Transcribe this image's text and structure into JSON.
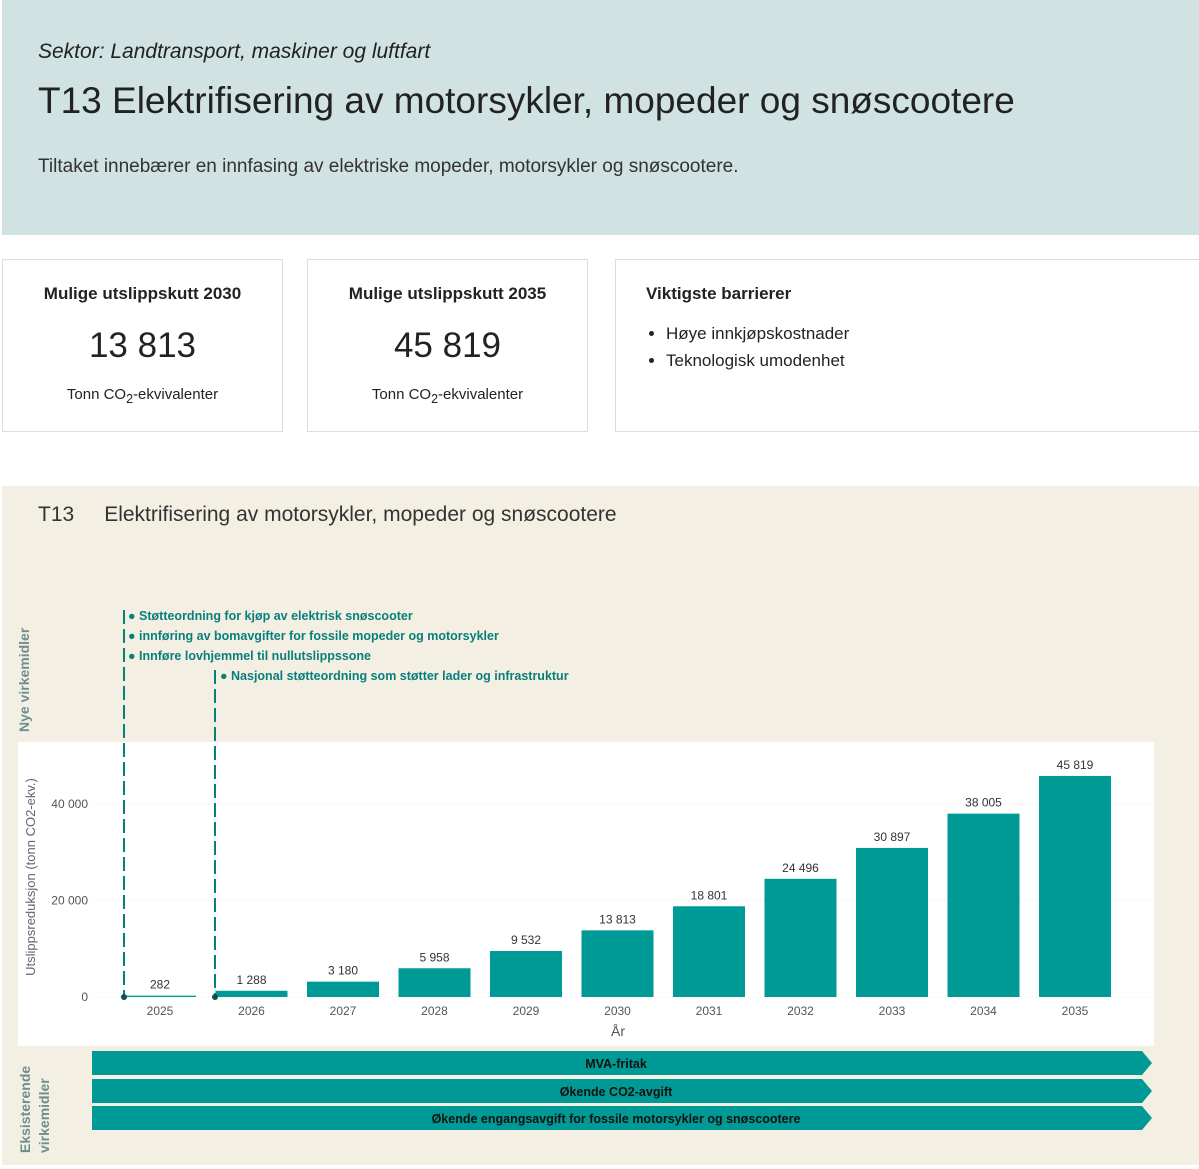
{
  "header": {
    "sector": "Sektor: Landtransport, maskiner og luftfart",
    "title": "T13 Elektrifisering av motorsykler, mopeder og snøscootere",
    "description": "Tiltaket innebærer en innfasing av elektriske mopeder, motorsykler og snøscootere."
  },
  "cards": [
    {
      "heading": "Mulige utslippskutt 2030",
      "value": "13 813",
      "unit_pre": "Tonn CO",
      "unit_sub": "2",
      "unit_post": "-ekvivalenter"
    },
    {
      "heading": "Mulige utslippskutt 2035",
      "value": "45 819",
      "unit_pre": "Tonn CO",
      "unit_sub": "2",
      "unit_post": "-ekvivalenter"
    }
  ],
  "barriers": {
    "heading": "Viktigste barrierer",
    "items": [
      "Høye innkjøpskostnader",
      "Teknologisk umodenhet"
    ]
  },
  "panel": {
    "code": "T13",
    "title": "Elektrifisering av motorsykler, mopeder og snøscootere",
    "new_label": "Nye virkemidler",
    "existing_label_1": "Eksisterende",
    "existing_label_2": "virkemidler"
  },
  "new_policies": [
    {
      "year": "2025",
      "text": "● Støtteordning for kjøp av elektrisk snøscooter"
    },
    {
      "year": "2025",
      "text": "● innføring av  bomavgifter for fossile mopeder og motorsykler"
    },
    {
      "year": "2025",
      "text": "● Innføre lovhjemmel til nullutslippssone"
    },
    {
      "year": "2026",
      "text": "● Nasjonal støtteordning som støtter lader og infrastruktur"
    }
  ],
  "existing_policies": [
    "MVA-fritak",
    "Økende CO2-avgift",
    "Økende engangsavgift for fossile motorsykler og snøscootere"
  ],
  "colors": {
    "bar": "#009a96",
    "policy_text": "#087f7b"
  },
  "chart_data": {
    "type": "bar",
    "categories": [
      "2025",
      "2026",
      "2027",
      "2028",
      "2029",
      "2030",
      "2031",
      "2032",
      "2033",
      "2034",
      "2035"
    ],
    "values": [
      282,
      1288,
      3180,
      5958,
      9532,
      13813,
      18801,
      24496,
      30897,
      38005,
      45819
    ],
    "value_labels": [
      "282",
      "1 288",
      "3 180",
      "5 958",
      "9 532",
      "13 813",
      "18 801",
      "24 496",
      "30 897",
      "38 005",
      "45 819"
    ],
    "xlabel": "År",
    "ylabel": "Utslippsreduksjon (tonn CO2-ekv.)",
    "yticks": [
      0,
      20000,
      40000
    ],
    "ytick_labels": [
      "0",
      "20 000",
      "40 000"
    ],
    "ylim": [
      0,
      50000
    ],
    "grid": true
  }
}
